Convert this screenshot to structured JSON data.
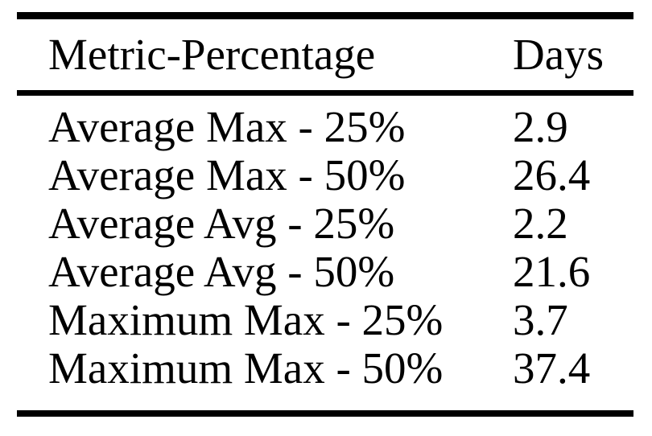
{
  "page": {
    "background": "#ffffff",
    "text_color": "#000000",
    "rule_color": "#000000"
  },
  "table": {
    "columns": {
      "metric": "Metric-Percentage",
      "days": "Days"
    },
    "rows": [
      {
        "metric": "Average Max - 25%",
        "days": "2.9"
      },
      {
        "metric": "Average Max - 50%",
        "days": "26.4"
      },
      {
        "metric": "Average Avg - 25%",
        "days": "2.2"
      },
      {
        "metric": "Average Avg - 50%",
        "days": "21.6"
      },
      {
        "metric": "Maximum Max - 25%",
        "days": "3.7"
      },
      {
        "metric": "Maximum Max - 50%",
        "days": "37.4"
      }
    ]
  },
  "chart_data": {
    "type": "table",
    "columns": [
      "Metric-Percentage",
      "Days"
    ],
    "rows": [
      [
        "Average Max - 25%",
        2.9
      ],
      [
        "Average Max - 50%",
        26.4
      ],
      [
        "Average Avg - 25%",
        2.2
      ],
      [
        "Average Avg - 50%",
        21.6
      ],
      [
        "Maximum Max - 25%",
        3.7
      ],
      [
        "Maximum Max - 50%",
        37.4
      ]
    ]
  }
}
